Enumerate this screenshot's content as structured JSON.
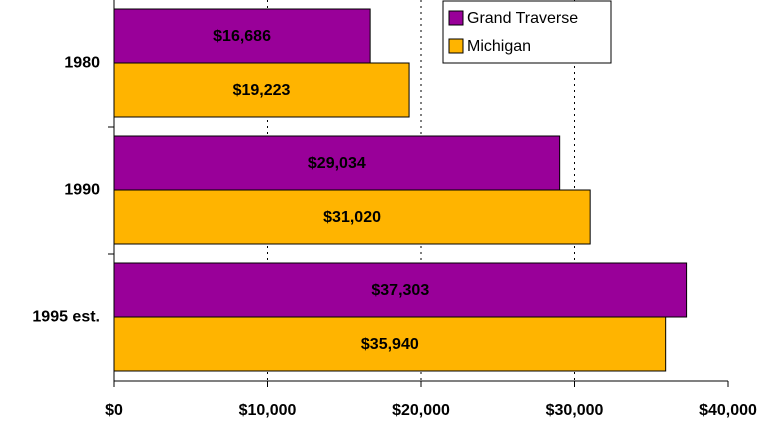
{
  "chart_data": {
    "type": "hbar",
    "categories": [
      "1980",
      "1990",
      "1995 est."
    ],
    "series": [
      {
        "name": "Grand Traverse",
        "color": "#990099",
        "values": [
          16686,
          29034,
          37303
        ],
        "value_labels": [
          "$16,686",
          "$29,034",
          "$37,303"
        ]
      },
      {
        "name": "Michigan",
        "color": "#ffb400",
        "values": [
          19223,
          31020,
          35940
        ],
        "value_labels": [
          "$19,223",
          "$31,020",
          "$35,940"
        ]
      }
    ],
    "xlim": [
      0,
      40000
    ],
    "xticks": [
      {
        "value": 0,
        "label": "$0"
      },
      {
        "value": 10000,
        "label": "$10,000"
      },
      {
        "value": 20000,
        "label": "$20,000"
      },
      {
        "value": 30000,
        "label": "$30,000"
      },
      {
        "value": 40000,
        "label": "$40,000"
      }
    ],
    "grid": true,
    "legend": "top-right"
  }
}
